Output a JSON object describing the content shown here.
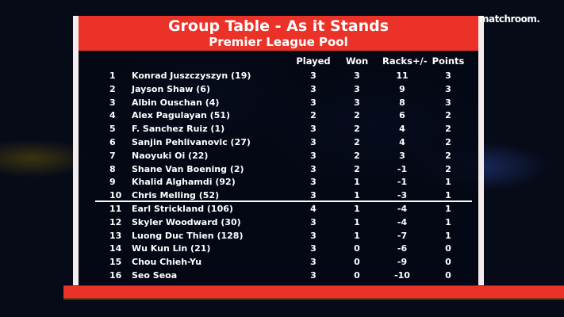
{
  "header": {
    "title": "Group Table - As it Stands",
    "subtitle": "Premier League Pool"
  },
  "logo": "matchroom.",
  "columns": {
    "played": "Played",
    "won": "Won",
    "racks": "Racks+/-",
    "points": "Points"
  },
  "rows": [
    {
      "rank": "1",
      "name": "Konrad Juszczyszyn (19)",
      "played": "3",
      "won": "3",
      "racks": "11",
      "points": "3"
    },
    {
      "rank": "2",
      "name": "Jayson Shaw (6)",
      "played": "3",
      "won": "3",
      "racks": "9",
      "points": "3"
    },
    {
      "rank": "3",
      "name": "Albin Ouschan (4)",
      "played": "3",
      "won": "3",
      "racks": "8",
      "points": "3"
    },
    {
      "rank": "4",
      "name": "Alex Pagulayan (51)",
      "played": "2",
      "won": "2",
      "racks": "6",
      "points": "2"
    },
    {
      "rank": "5",
      "name": "F. Sanchez Ruiz (1)",
      "played": "3",
      "won": "2",
      "racks": "4",
      "points": "2"
    },
    {
      "rank": "6",
      "name": "Sanjin Pehlivanovic (27)",
      "played": "3",
      "won": "2",
      "racks": "4",
      "points": "2"
    },
    {
      "rank": "7",
      "name": "Naoyuki Oi (22)",
      "played": "3",
      "won": "2",
      "racks": "3",
      "points": "2"
    },
    {
      "rank": "8",
      "name": "Shane Van Boening (2)",
      "played": "3",
      "won": "2",
      "racks": "-1",
      "points": "2"
    },
    {
      "rank": "9",
      "name": "Khalid Alghamdi (92)",
      "played": "3",
      "won": "1",
      "racks": "-1",
      "points": "1"
    },
    {
      "rank": "10",
      "name": "Chris Melling (52)",
      "played": "3",
      "won": "1",
      "racks": "-3",
      "points": "1"
    },
    {
      "rank": "11",
      "name": "Earl Strickland (106)",
      "played": "4",
      "won": "1",
      "racks": "-4",
      "points": "1"
    },
    {
      "rank": "12",
      "name": "Skyler Woodward (30)",
      "played": "3",
      "won": "1",
      "racks": "-4",
      "points": "1"
    },
    {
      "rank": "13",
      "name": "Luong Duc Thien (128)",
      "played": "3",
      "won": "1",
      "racks": "-7",
      "points": "1"
    },
    {
      "rank": "14",
      "name": "Wu Kun Lin (21)",
      "played": "3",
      "won": "0",
      "racks": "-6",
      "points": "0"
    },
    {
      "rank": "15",
      "name": "Chou Chieh-Yu",
      "played": "3",
      "won": "0",
      "racks": "-9",
      "points": "0"
    },
    {
      "rank": "16",
      "name": "Seo Seoa",
      "played": "3",
      "won": "0",
      "racks": "-10",
      "points": "0"
    }
  ],
  "colors": {
    "accent": "#ea3228"
  }
}
